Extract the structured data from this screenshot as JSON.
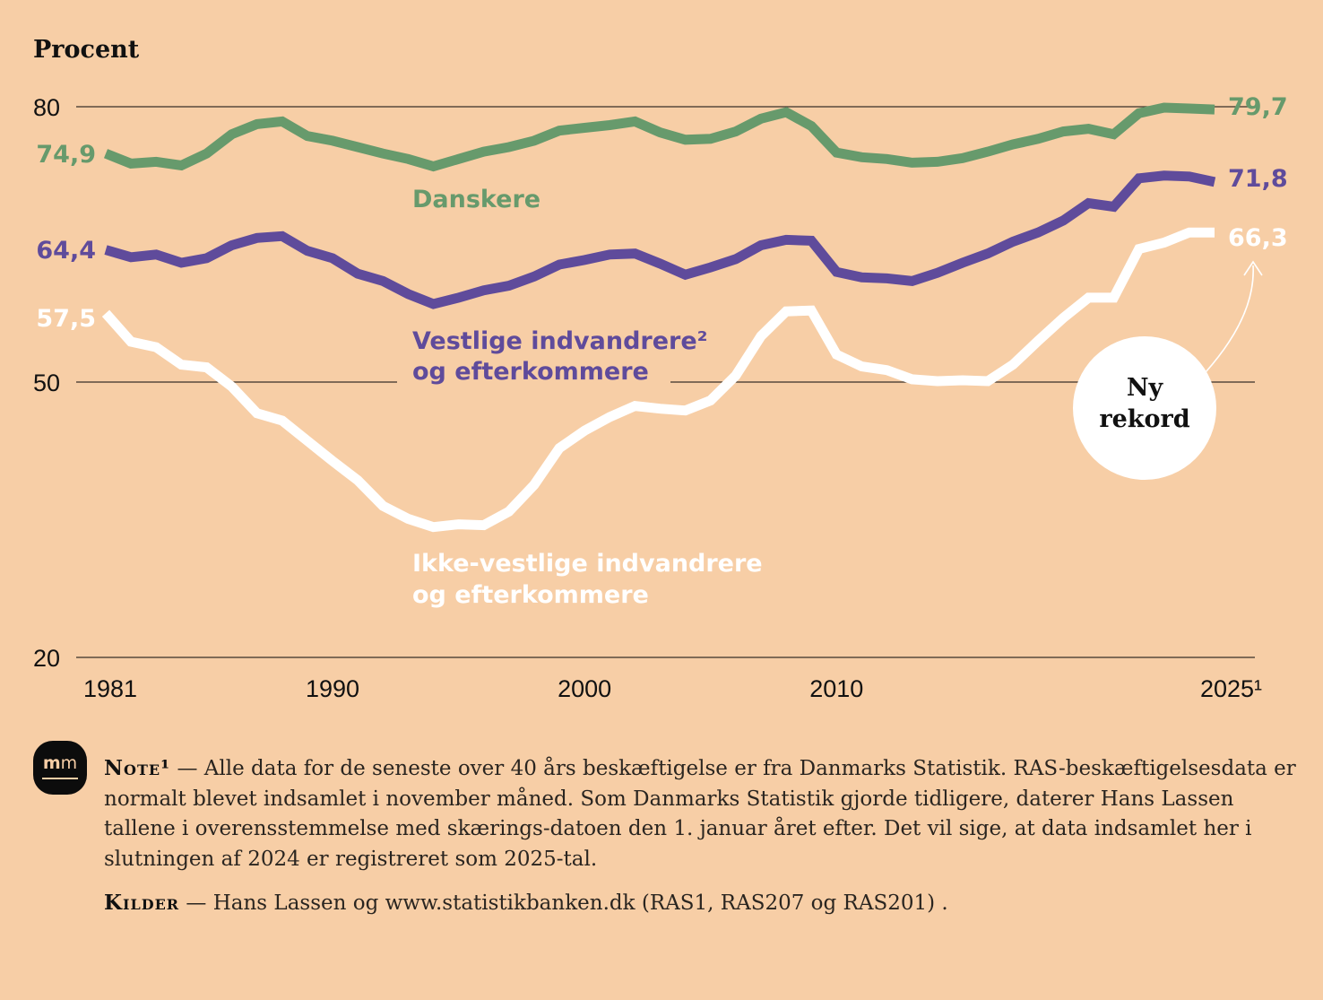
{
  "chart_data": {
    "type": "line",
    "ylabel": "Procent",
    "ylim": [
      20,
      80
    ],
    "yticks": [
      80,
      50,
      20
    ],
    "ytick_labels": [
      "80",
      "50",
      "20"
    ],
    "xlim": [
      1981,
      2025
    ],
    "xticks": [
      1981,
      1990,
      2000,
      2010,
      2025
    ],
    "xtick_labels": [
      "1981",
      "1990",
      "2000",
      "2010",
      "2025¹"
    ],
    "grid": "horizontal lines at y ticks",
    "x": [
      1981,
      1982,
      1983,
      1984,
      1985,
      1986,
      1987,
      1988,
      1989,
      1990,
      1991,
      1992,
      1993,
      1994,
      1995,
      1996,
      1997,
      1998,
      1999,
      2000,
      2001,
      2002,
      2003,
      2004,
      2005,
      2006,
      2007,
      2008,
      2009,
      2010,
      2011,
      2012,
      2013,
      2014,
      2015,
      2016,
      2017,
      2018,
      2019,
      2020,
      2021,
      2022,
      2023,
      2024,
      2025
    ],
    "series": [
      {
        "name": "Danskere",
        "label": "Danskere",
        "color": "#679a6c",
        "start_label": "74,9",
        "end_label": "79,7",
        "values": [
          74.9,
          73.8,
          74.0,
          73.6,
          74.9,
          77.0,
          78.1,
          78.4,
          76.8,
          76.3,
          75.6,
          74.9,
          74.3,
          73.5,
          74.3,
          75.1,
          75.6,
          76.3,
          77.4,
          77.7,
          78.0,
          78.4,
          77.2,
          76.4,
          76.5,
          77.3,
          78.7,
          79.4,
          77.9,
          75.0,
          74.5,
          74.3,
          73.9,
          74.0,
          74.4,
          75.1,
          75.9,
          76.5,
          77.3,
          77.6,
          77.0,
          79.3,
          79.9,
          79.8,
          79.7
        ]
      },
      {
        "name": "Vestlige indvandrere og efterkommere",
        "label_line1": "Vestlige indvandrere²",
        "label_line2": "og efterkommere",
        "color": "#5f4b9b",
        "start_label": "64,4",
        "end_label": "71,8",
        "values": [
          64.4,
          63.6,
          63.9,
          63.0,
          63.5,
          64.9,
          65.7,
          65.9,
          64.3,
          63.5,
          61.8,
          61.0,
          59.6,
          58.5,
          59.2,
          60.0,
          60.5,
          61.5,
          62.8,
          63.3,
          63.9,
          64.0,
          62.9,
          61.7,
          62.5,
          63.4,
          64.9,
          65.5,
          65.4,
          62.0,
          61.4,
          61.3,
          61.0,
          61.9,
          63.0,
          64.0,
          65.3,
          66.3,
          67.6,
          69.5,
          69.1,
          72.2,
          72.5,
          72.4,
          71.8
        ]
      },
      {
        "name": "Ikke-vestlige indvandrere og efterkommere",
        "label_line1": "Ikke-vestlige indvandrere",
        "label_line2": "og efterkommere",
        "color": "#ffffff",
        "start_label": "57,5",
        "end_label": "66,3",
        "values": [
          57.5,
          54.4,
          53.8,
          51.9,
          51.6,
          49.5,
          46.6,
          45.8,
          43.6,
          41.4,
          39.3,
          36.5,
          35.1,
          34.2,
          34.5,
          34.4,
          35.9,
          38.8,
          42.8,
          44.7,
          46.2,
          47.4,
          47.1,
          46.9,
          48.0,
          50.7,
          55.0,
          57.7,
          57.8,
          53.0,
          51.7,
          51.3,
          50.3,
          50.1,
          50.2,
          50.1,
          51.9,
          54.5,
          57.0,
          59.2,
          59.2,
          64.5,
          65.2,
          66.3,
          66.3
        ]
      }
    ],
    "annotation": {
      "line1": "Ny",
      "line2": "rekord",
      "points_to": "66,3"
    }
  },
  "footer": {
    "logo_text_bold": "m",
    "logo_text_thin": "m",
    "note_label": "Note¹",
    "note_dash": " — ",
    "note_text": "Alle data for de seneste over 40 års beskæftigelse er fra Danmarks Statistik. RAS-beskæftigelsesdata er normalt blevet indsamlet i november måned. Som Danmarks Statistik gjorde tidligere, daterer Hans Lassen tallene i overensstemmelse med skærings-datoen den 1. januar året efter. Det vil sige, at data indsamlet her i slutningen af 2024 er registreret som 2025-tal.",
    "kilder_label": "Kilder",
    "kilder_dash": " — ",
    "kilder_text": "Hans Lassen og www.statistikbanken.dk (RAS1, RAS207 og RAS201) ."
  }
}
